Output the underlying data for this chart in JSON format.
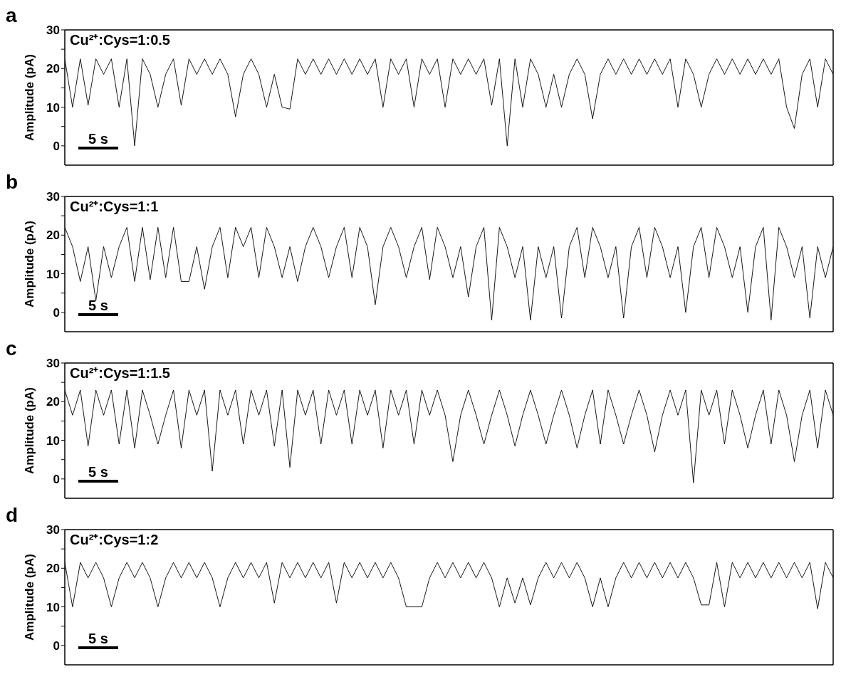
{
  "chart_data": [
    {
      "type": "line",
      "title": "a",
      "ylabel": "Amplitude (pA)",
      "annotations": [
        "Cu²⁺:Cys=1:0.5",
        "5 s"
      ],
      "tick_labels": "y",
      "ylim": [
        -5,
        30
      ],
      "yticks": [
        0,
        {
          "value": 5,
          "label": null
        },
        10,
        {
          "value": 15,
          "label": null
        },
        20,
        {
          "value": 25,
          "label": null
        },
        30
      ],
      "categories": [
        null,
        null,
        null,
        null,
        null,
        null,
        null,
        null,
        null,
        null,
        null,
        null,
        null,
        null,
        null,
        null,
        null,
        null,
        null,
        null,
        null,
        null,
        null,
        null,
        null,
        null,
        null,
        null,
        null,
        null,
        null,
        null,
        null,
        null,
        null,
        null,
        null,
        null,
        null,
        null,
        null,
        null,
        null,
        null,
        null,
        null,
        null,
        null,
        null,
        null,
        null,
        null,
        null,
        null,
        null,
        null,
        null,
        null,
        null,
        null,
        null,
        null,
        null,
        null,
        null,
        null,
        null,
        null,
        null,
        null,
        null,
        null,
        null,
        null,
        null,
        null,
        null,
        null,
        null,
        null,
        null,
        null,
        null,
        null,
        null,
        null,
        null,
        null,
        null,
        null,
        null,
        null,
        null,
        null,
        null,
        null,
        null,
        null,
        null,
        null
      ],
      "series": [
        {
          "color": "#000000",
          "values": [
            22.5,
            10,
            22.5,
            10.5,
            22.5,
            18.5,
            22.5,
            10,
            22.5,
            0,
            22.5,
            18.5,
            10,
            18.5,
            22.5,
            10.5,
            22.5,
            18.5,
            22.5,
            18.5,
            22.5,
            18.5,
            7.5,
            18.5,
            22.5,
            18.5,
            10,
            18.5,
            10,
            9.5,
            22.5,
            18.5,
            22.5,
            18.5,
            22.5,
            18.5,
            22.5,
            18.5,
            22.5,
            18.5,
            22.5,
            10,
            22.5,
            18.5,
            22.5,
            10,
            22.5,
            18.5,
            22.5,
            10,
            22.5,
            18.5,
            22.5,
            18.5,
            22.5,
            10.5,
            22.5,
            0,
            22.5,
            10,
            22.5,
            18.5,
            10,
            18.5,
            10,
            18.5,
            22.5,
            18.5,
            7,
            18.5,
            22.5,
            18.5,
            22.5,
            18.5,
            22.5,
            18.5,
            22.5,
            18.5,
            22.5,
            10,
            22.5,
            18.5,
            10,
            18.5,
            22.5,
            18.5,
            22.5,
            18.5,
            22.5,
            18.5,
            22.5,
            18.5,
            22.5,
            10,
            4.5,
            18.5,
            22.5,
            10,
            22.5,
            18.5
          ]
        }
      ]
    },
    {
      "type": "line",
      "title": "b",
      "ylabel": "Amplitude (pA)",
      "annotations": [
        "Cu²⁺:Cys=1:1",
        "5 s"
      ],
      "tick_labels": "y",
      "ylim": [
        -5,
        30
      ],
      "yticks": [
        0,
        {
          "value": 5,
          "label": null
        },
        10,
        {
          "value": 15,
          "label": null
        },
        20,
        {
          "value": 25,
          "label": null
        },
        30
      ],
      "categories": [
        null,
        null,
        null,
        null,
        null,
        null,
        null,
        null,
        null,
        null,
        null,
        null,
        null,
        null,
        null,
        null,
        null,
        null,
        null,
        null,
        null,
        null,
        null,
        null,
        null,
        null,
        null,
        null,
        null,
        null,
        null,
        null,
        null,
        null,
        null,
        null,
        null,
        null,
        null,
        null,
        null,
        null,
        null,
        null,
        null,
        null,
        null,
        null,
        null,
        null,
        null,
        null,
        null,
        null,
        null,
        null,
        null,
        null,
        null,
        null,
        null,
        null,
        null,
        null,
        null,
        null,
        null,
        null,
        null,
        null,
        null,
        null,
        null,
        null,
        null,
        null,
        null,
        null,
        null,
        null,
        null,
        null,
        null,
        null,
        null,
        null,
        null,
        null,
        null,
        null,
        null,
        null,
        null,
        null,
        null,
        null,
        null,
        null,
        null,
        null
      ],
      "series": [
        {
          "color": "#000000",
          "values": [
            22,
            17,
            8,
            17,
            3,
            17,
            9,
            17,
            22,
            8,
            22,
            8.5,
            22,
            9,
            22,
            8,
            8,
            17,
            6,
            17,
            22,
            9,
            22,
            17,
            22,
            9,
            22,
            17,
            9,
            17,
            8,
            17,
            22,
            17,
            9,
            17,
            22,
            9,
            22,
            17,
            2,
            17,
            22,
            17,
            9,
            17,
            22,
            8.5,
            22,
            17,
            9,
            17,
            4,
            17,
            22,
            -2,
            22,
            17,
            9,
            17,
            -2,
            17,
            9,
            17,
            -1.5,
            17,
            22,
            9,
            22,
            17,
            9,
            17,
            -1.5,
            17,
            22,
            9,
            22,
            17,
            9,
            17,
            0,
            17,
            22,
            9,
            22,
            17,
            9,
            17,
            0,
            17,
            22,
            -2,
            22,
            17,
            9,
            17,
            -1.5,
            17,
            9,
            17
          ]
        }
      ]
    },
    {
      "type": "line",
      "title": "c",
      "ylabel": "Amplitude (pA)",
      "annotations": [
        "Cu²⁺:Cys=1:1.5",
        "5 s"
      ],
      "tick_labels": "y",
      "ylim": [
        -5,
        30
      ],
      "yticks": [
        0,
        {
          "value": 5,
          "label": null
        },
        10,
        {
          "value": 15,
          "label": null
        },
        20,
        {
          "value": 25,
          "label": null
        },
        30
      ],
      "categories": [
        null,
        null,
        null,
        null,
        null,
        null,
        null,
        null,
        null,
        null,
        null,
        null,
        null,
        null,
        null,
        null,
        null,
        null,
        null,
        null,
        null,
        null,
        null,
        null,
        null,
        null,
        null,
        null,
        null,
        null,
        null,
        null,
        null,
        null,
        null,
        null,
        null,
        null,
        null,
        null,
        null,
        null,
        null,
        null,
        null,
        null,
        null,
        null,
        null,
        null,
        null,
        null,
        null,
        null,
        null,
        null,
        null,
        null,
        null,
        null,
        null,
        null,
        null,
        null,
        null,
        null,
        null,
        null,
        null,
        null,
        null,
        null,
        null,
        null,
        null,
        null,
        null,
        null,
        null,
        null,
        null,
        null,
        null,
        null,
        null,
        null,
        null,
        null,
        null,
        null,
        null,
        null,
        null,
        null,
        null,
        null,
        null,
        null,
        null,
        null
      ],
      "series": [
        {
          "color": "#000000",
          "values": [
            23,
            16.5,
            23,
            8.5,
            23,
            16.5,
            23,
            9,
            23,
            8,
            23,
            16.5,
            9,
            16.5,
            23,
            8,
            23,
            16.5,
            23,
            2,
            23,
            16.5,
            23,
            9,
            23,
            16.5,
            23,
            8.5,
            23,
            3,
            23,
            16.5,
            23,
            9,
            23,
            16.5,
            23,
            9,
            23,
            16.5,
            23,
            8,
            23,
            16.5,
            23,
            9,
            23,
            16.5,
            23,
            16.5,
            4.5,
            16.5,
            23,
            16.5,
            9,
            16.5,
            23,
            16.5,
            8.5,
            16.5,
            23,
            16.5,
            9,
            16.5,
            23,
            16.5,
            8,
            16.5,
            23,
            9,
            23,
            16.5,
            9,
            16.5,
            23,
            16.5,
            7,
            16.5,
            23,
            16.5,
            23,
            -1,
            23,
            16.5,
            23,
            9,
            23,
            16.5,
            8,
            16.5,
            23,
            9,
            23,
            16.5,
            4.5,
            16.5,
            23,
            8,
            23,
            16.5
          ]
        }
      ]
    },
    {
      "type": "line",
      "title": "d",
      "ylabel": "Amplitude (pA)",
      "annotations": [
        "Cu²⁺:Cys=1:2",
        "5 s"
      ],
      "tick_labels": "y",
      "ylim": [
        -5,
        30
      ],
      "yticks": [
        0,
        {
          "value": 5,
          "label": null
        },
        10,
        {
          "value": 15,
          "label": null
        },
        20,
        {
          "value": 25,
          "label": null
        },
        30
      ],
      "categories": [
        null,
        null,
        null,
        null,
        null,
        null,
        null,
        null,
        null,
        null,
        null,
        null,
        null,
        null,
        null,
        null,
        null,
        null,
        null,
        null,
        null,
        null,
        null,
        null,
        null,
        null,
        null,
        null,
        null,
        null,
        null,
        null,
        null,
        null,
        null,
        null,
        null,
        null,
        null,
        null,
        null,
        null,
        null,
        null,
        null,
        null,
        null,
        null,
        null,
        null,
        null,
        null,
        null,
        null,
        null,
        null,
        null,
        null,
        null,
        null,
        null,
        null,
        null,
        null,
        null,
        null,
        null,
        null,
        null,
        null,
        null,
        null,
        null,
        null,
        null,
        null,
        null,
        null,
        null,
        null,
        null,
        null,
        null,
        null,
        null,
        null,
        null,
        null,
        null,
        null,
        null,
        null,
        null,
        null,
        null,
        null,
        null,
        null,
        null,
        null
      ],
      "series": [
        {
          "color": "#000000",
          "values": [
            21.5,
            10,
            21.5,
            17.5,
            21.5,
            17.5,
            10,
            17.5,
            21.5,
            17.5,
            21.5,
            17.5,
            10,
            17.5,
            21.5,
            17.5,
            21.5,
            17.5,
            21.5,
            17.5,
            10,
            17.5,
            21.5,
            17.5,
            21.5,
            17.5,
            21.5,
            11,
            21.5,
            17.5,
            21.5,
            17.5,
            21.5,
            17.5,
            21.5,
            11,
            21.5,
            17.5,
            21.5,
            17.5,
            21.5,
            17.5,
            21.5,
            17.5,
            10,
            10,
            10,
            17.5,
            21.5,
            17.5,
            21.5,
            17.5,
            21.5,
            17.5,
            21.5,
            17.5,
            10,
            17.5,
            11,
            17.5,
            10.5,
            17.5,
            21.5,
            17.5,
            21.5,
            17.5,
            21.5,
            17.5,
            10,
            17.5,
            10,
            17.5,
            21.5,
            17.5,
            21.5,
            17.5,
            21.5,
            17.5,
            21.5,
            17.5,
            21.5,
            17.5,
            10.5,
            10.5,
            21.5,
            10,
            21.5,
            17.5,
            21.5,
            17.5,
            21.5,
            17.5,
            21.5,
            17.5,
            21.5,
            17.5,
            21.5,
            9.5,
            21.5,
            17.5
          ]
        }
      ]
    }
  ]
}
